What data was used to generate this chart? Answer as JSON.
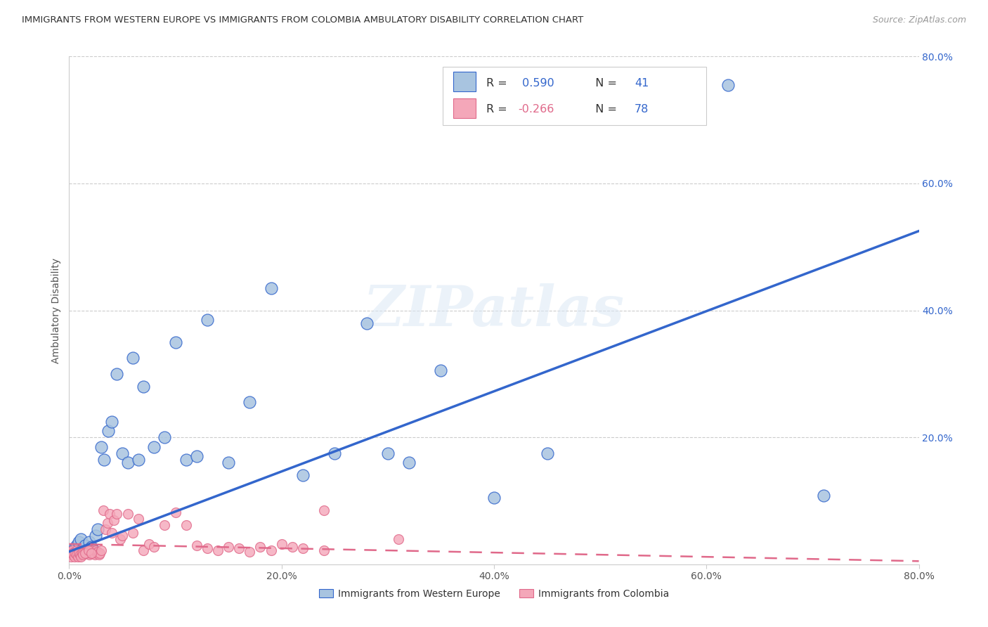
{
  "title": "IMMIGRANTS FROM WESTERN EUROPE VS IMMIGRANTS FROM COLOMBIA AMBULATORY DISABILITY CORRELATION CHART",
  "source": "Source: ZipAtlas.com",
  "ylabel": "Ambulatory Disability",
  "xlim": [
    0.0,
    0.8
  ],
  "ylim": [
    0.0,
    0.8
  ],
  "xtick_labels": [
    "0.0%",
    "20.0%",
    "40.0%",
    "60.0%",
    "80.0%"
  ],
  "xtick_vals": [
    0.0,
    0.2,
    0.4,
    0.6,
    0.8
  ],
  "ytick_labels_right": [
    "80.0%",
    "60.0%",
    "40.0%",
    "20.0%"
  ],
  "ytick_vals_right": [
    0.8,
    0.6,
    0.4,
    0.2
  ],
  "r_western": 0.59,
  "n_western": 41,
  "r_colombia": -0.266,
  "n_colombia": 78,
  "color_western": "#a8c4e0",
  "color_colombia": "#f4a7b9",
  "line_color_western": "#3366cc",
  "line_color_colombia": "#e0698a",
  "text_color_blue": "#3366cc",
  "text_color_black": "#333333",
  "western_scatter_x": [
    0.005,
    0.007,
    0.009,
    0.011,
    0.013,
    0.015,
    0.017,
    0.019,
    0.021,
    0.023,
    0.025,
    0.027,
    0.03,
    0.033,
    0.037,
    0.04,
    0.045,
    0.05,
    0.055,
    0.06,
    0.065,
    0.07,
    0.08,
    0.09,
    0.1,
    0.11,
    0.12,
    0.13,
    0.15,
    0.17,
    0.19,
    0.22,
    0.25,
    0.28,
    0.3,
    0.32,
    0.35,
    0.4,
    0.45,
    0.62,
    0.71
  ],
  "western_scatter_y": [
    0.025,
    0.03,
    0.035,
    0.04,
    0.025,
    0.03,
    0.02,
    0.035,
    0.028,
    0.022,
    0.045,
    0.055,
    0.185,
    0.165,
    0.21,
    0.225,
    0.3,
    0.175,
    0.16,
    0.325,
    0.165,
    0.28,
    0.185,
    0.2,
    0.35,
    0.165,
    0.17,
    0.385,
    0.16,
    0.255,
    0.435,
    0.14,
    0.175,
    0.38,
    0.175,
    0.16,
    0.305,
    0.105,
    0.175,
    0.755,
    0.108
  ],
  "colombia_scatter_x": [
    0.001,
    0.002,
    0.003,
    0.004,
    0.005,
    0.006,
    0.007,
    0.008,
    0.009,
    0.01,
    0.011,
    0.012,
    0.013,
    0.014,
    0.015,
    0.016,
    0.017,
    0.018,
    0.019,
    0.02,
    0.021,
    0.022,
    0.023,
    0.024,
    0.025,
    0.026,
    0.027,
    0.028,
    0.029,
    0.03,
    0.032,
    0.034,
    0.036,
    0.038,
    0.04,
    0.042,
    0.045,
    0.048,
    0.05,
    0.055,
    0.06,
    0.065,
    0.07,
    0.075,
    0.08,
    0.09,
    0.1,
    0.11,
    0.12,
    0.13,
    0.14,
    0.15,
    0.16,
    0.17,
    0.18,
    0.19,
    0.2,
    0.21,
    0.22,
    0.24,
    0.001,
    0.002,
    0.003,
    0.004,
    0.005,
    0.006,
    0.007,
    0.008,
    0.009,
    0.01,
    0.011,
    0.012,
    0.013,
    0.015,
    0.018,
    0.021,
    0.24,
    0.31
  ],
  "colombia_scatter_y": [
    0.02,
    0.018,
    0.022,
    0.018,
    0.02,
    0.018,
    0.022,
    0.02,
    0.018,
    0.022,
    0.02,
    0.018,
    0.022,
    0.018,
    0.02,
    0.018,
    0.022,
    0.02,
    0.015,
    0.018,
    0.022,
    0.02,
    0.018,
    0.015,
    0.022,
    0.018,
    0.02,
    0.015,
    0.018,
    0.022,
    0.085,
    0.055,
    0.065,
    0.08,
    0.05,
    0.07,
    0.08,
    0.04,
    0.045,
    0.08,
    0.05,
    0.072,
    0.022,
    0.032,
    0.028,
    0.062,
    0.082,
    0.062,
    0.03,
    0.025,
    0.022,
    0.028,
    0.025,
    0.02,
    0.028,
    0.022,
    0.032,
    0.028,
    0.025,
    0.022,
    0.015,
    0.012,
    0.018,
    0.015,
    0.012,
    0.018,
    0.015,
    0.012,
    0.018,
    0.015,
    0.012,
    0.018,
    0.015,
    0.018,
    0.022,
    0.018,
    0.085,
    0.04
  ],
  "watermark_text": "ZIPatlas",
  "legend_label_western": "Immigrants from Western Europe",
  "legend_label_colombia": "Immigrants from Colombia",
  "background_color": "#ffffff",
  "grid_color": "#cccccc",
  "reg_line_w_x0": 0.0,
  "reg_line_w_y0": 0.02,
  "reg_line_w_x1": 0.8,
  "reg_line_w_y1": 0.525,
  "reg_line_c_x0": 0.0,
  "reg_line_c_y0": 0.032,
  "reg_line_c_x1": 0.8,
  "reg_line_c_y1": 0.005
}
